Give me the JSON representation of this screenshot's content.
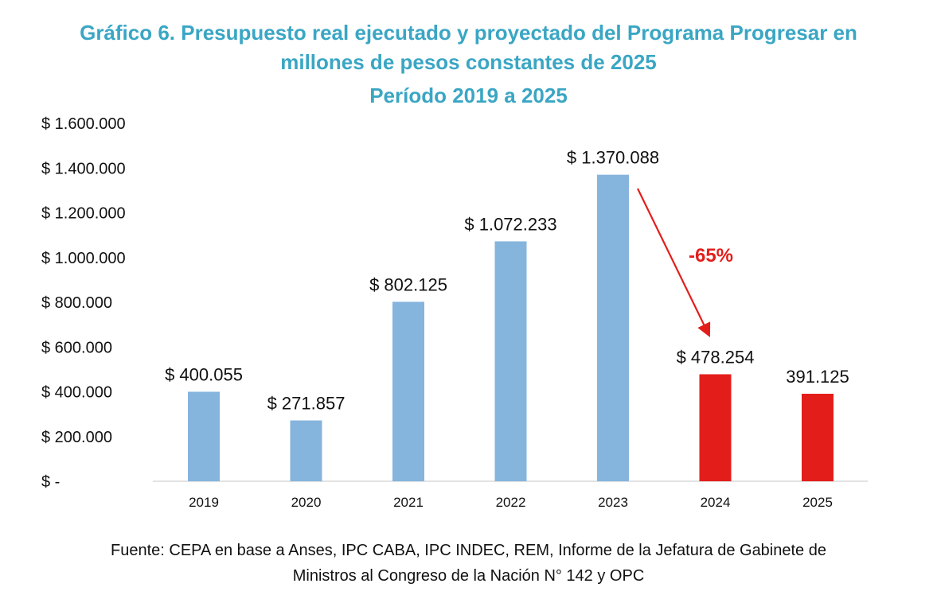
{
  "chart_data": {
    "type": "bar",
    "title_lines": [
      "Gráfico 6. Presupuesto real ejecutado y proyectado del Programa Progresar en",
      "millones de pesos constantes de 2025",
      "Período 2019 a 2025"
    ],
    "categories": [
      "2019",
      "2020",
      "2021",
      "2022",
      "2023",
      "2024",
      "2025"
    ],
    "values": [
      400055,
      271857,
      802125,
      1072233,
      1370088,
      478254,
      391125
    ],
    "data_labels": [
      "$ 400.055",
      "$ 271.857",
      "$ 802.125",
      "$ 1.072.233",
      "$ 1.370.088",
      "$ 478.254",
      "391.125"
    ],
    "bar_colors": [
      "#85b4dd",
      "#85b4dd",
      "#85b4dd",
      "#85b4dd",
      "#85b4dd",
      "#e31e1a",
      "#e31e1a"
    ],
    "ylim": [
      0,
      1600000
    ],
    "yticks": [
      0,
      200000,
      400000,
      600000,
      800000,
      1000000,
      1200000,
      1400000,
      1600000
    ],
    "ytick_labels": [
      "$ -",
      "$ 200.000",
      "$ 400.000",
      "$ 600.000",
      "$ 800.000",
      "$ 1.000.000",
      "$ 1.200.000",
      "$ 1.400.000",
      "$ 1.600.000"
    ],
    "grid": false,
    "annotation": {
      "text": "-65%",
      "from": "2023",
      "to": "2024",
      "color": "#e31e1a"
    },
    "xlabel": "",
    "ylabel": ""
  },
  "footer": [
    "Fuente: CEPA en base a Anses, IPC CABA, IPC INDEC, REM, Informe de la Jefatura de Gabinete de",
    "Ministros al Congreso de la Nación N° 142 y OPC"
  ]
}
